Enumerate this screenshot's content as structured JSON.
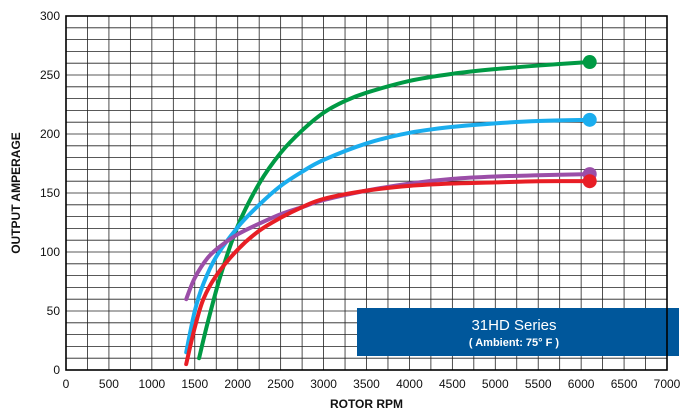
{
  "chart_data": {
    "type": "line",
    "xlabel": "ROTOR RPM",
    "ylabel": "OUTPUT AMPERAGE",
    "xlim": [
      0,
      7000
    ],
    "ylim": [
      0,
      300
    ],
    "x_ticks": [
      0,
      500,
      1000,
      1500,
      2000,
      2500,
      3000,
      3500,
      4000,
      4500,
      5000,
      5500,
      6000,
      6500,
      7000
    ],
    "y_ticks": [
      0,
      50,
      100,
      150,
      200,
      250,
      300
    ],
    "x_minor_step": 250,
    "y_minor_step": 10,
    "grid": true,
    "legend": "none",
    "annotation": {
      "title": "31HD Series",
      "subtitle": "( Ambient: 75° F )",
      "background": "#00579b"
    },
    "series": [
      {
        "color": "#009a44",
        "x": [
          1550,
          1650,
          1800,
          2000,
          2250,
          2500,
          2750,
          3000,
          3250,
          3500,
          4000,
          4500,
          5000,
          5500,
          6100
        ],
        "y": [
          10,
          40,
          80,
          122,
          158,
          184,
          203,
          218,
          228,
          235,
          245,
          251,
          255,
          258,
          261
        ]
      },
      {
        "color": "#1aadee",
        "x": [
          1400,
          1500,
          1600,
          1750,
          2000,
          2250,
          2500,
          2750,
          3000,
          3500,
          4000,
          4500,
          5000,
          5500,
          6100
        ],
        "y": [
          15,
          50,
          73,
          96,
          121,
          140,
          156,
          168,
          178,
          192,
          201,
          206,
          209,
          211,
          212
        ]
      },
      {
        "color": "#9b4ea8",
        "x": [
          1400,
          1500,
          1650,
          1800,
          2000,
          2250,
          2500,
          2750,
          3000,
          3500,
          4000,
          4500,
          5000,
          5500,
          6100
        ],
        "y": [
          60,
          78,
          95,
          105,
          115,
          124,
          132,
          138,
          144,
          152,
          158,
          162,
          164,
          165,
          166
        ]
      },
      {
        "color": "#e81e25",
        "x": [
          1400,
          1500,
          1600,
          1750,
          2000,
          2250,
          2500,
          2750,
          3000,
          3500,
          4000,
          4500,
          5000,
          5500,
          6100
        ],
        "y": [
          5,
          36,
          60,
          80,
          102,
          118,
          129,
          138,
          145,
          152,
          156,
          158,
          159,
          160,
          160
        ]
      }
    ]
  }
}
